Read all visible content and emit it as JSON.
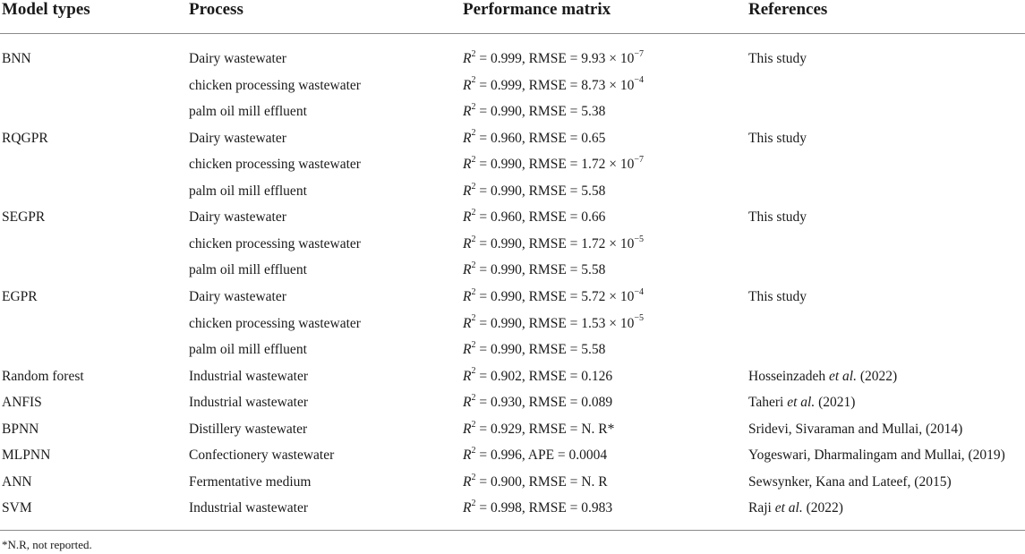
{
  "table": {
    "headers": [
      "Model types",
      "Process",
      "Performance matrix",
      "References"
    ],
    "rows": [
      {
        "model": "BNN",
        "process": "Dairy wastewater",
        "r2": "0.999",
        "metric": "RMSE = 9.93 × 10",
        "exp": "−7",
        "reference_pre": "This study",
        "reference_italic": "",
        "reference_post": ""
      },
      {
        "model": "",
        "process": "chicken processing wastewater",
        "r2": "0.999",
        "metric": "RMSE = 8.73 × 10",
        "exp": "−4",
        "reference_pre": "",
        "reference_italic": "",
        "reference_post": ""
      },
      {
        "model": "",
        "process": "palm oil mill effluent",
        "r2": "0.990",
        "metric": "RMSE = 5.38",
        "exp": "",
        "reference_pre": "",
        "reference_italic": "",
        "reference_post": ""
      },
      {
        "model": "RQGPR",
        "process": "Dairy wastewater",
        "r2": "0.960",
        "metric": "RMSE = 0.65",
        "exp": "",
        "reference_pre": "This study",
        "reference_italic": "",
        "reference_post": ""
      },
      {
        "model": "",
        "process": "chicken processing wastewater",
        "r2": "0.990",
        "metric": "RMSE = 1.72 × 10",
        "exp": "−7",
        "reference_pre": "",
        "reference_italic": "",
        "reference_post": ""
      },
      {
        "model": "",
        "process": "palm oil mill effluent",
        "r2": "0.990",
        "metric": "RMSE = 5.58",
        "exp": "",
        "reference_pre": "",
        "reference_italic": "",
        "reference_post": ""
      },
      {
        "model": "SEGPR",
        "process": "Dairy wastewater",
        "r2": "0.960",
        "metric": "RMSE = 0.66",
        "exp": "",
        "reference_pre": "This study",
        "reference_italic": "",
        "reference_post": ""
      },
      {
        "model": "",
        "process": "chicken processing wastewater",
        "r2": "0.990",
        "metric": "RMSE = 1.72 × 10",
        "exp": "−5",
        "reference_pre": "",
        "reference_italic": "",
        "reference_post": ""
      },
      {
        "model": "",
        "process": "palm oil mill effluent",
        "r2": "0.990",
        "metric": "RMSE = 5.58",
        "exp": "",
        "reference_pre": "",
        "reference_italic": "",
        "reference_post": ""
      },
      {
        "model": "EGPR",
        "process": "Dairy wastewater",
        "r2": "0.990",
        "metric": "RMSE = 5.72 × 10",
        "exp": "−4",
        "reference_pre": "This study",
        "reference_italic": "",
        "reference_post": ""
      },
      {
        "model": "",
        "process": "chicken processing wastewater",
        "r2": "0.990",
        "metric": "RMSE = 1.53 × 10",
        "exp": "−5",
        "reference_pre": "",
        "reference_italic": "",
        "reference_post": ""
      },
      {
        "model": "",
        "process": "palm oil mill effluent",
        "r2": "0.990",
        "metric": "RMSE = 5.58",
        "exp": "",
        "reference_pre": "",
        "reference_italic": "",
        "reference_post": ""
      },
      {
        "model": "Random forest",
        "process": "Industrial wastewater",
        "r2": "0.902",
        "metric": "RMSE = 0.126",
        "exp": "",
        "reference_pre": "Hosseinzadeh ",
        "reference_italic": "et al.",
        "reference_post": " (2022)"
      },
      {
        "model": "ANFIS",
        "process": "Industrial wastewater",
        "r2": "0.930",
        "metric": "RMSE = 0.089",
        "exp": "",
        "reference_pre": "Taheri ",
        "reference_italic": "et al.",
        "reference_post": " (2021)"
      },
      {
        "model": "BPNN",
        "process": "Distillery wastewater",
        "r2": "0.929",
        "metric": "RMSE = N. R*",
        "exp": "",
        "reference_pre": "Sridevi, Sivaraman and Mullai, (2014)",
        "reference_italic": "",
        "reference_post": ""
      },
      {
        "model": "MLPNN",
        "process": "Confectionery wastewater",
        "r2": "0.996",
        "metric": "APE = 0.0004",
        "exp": "",
        "reference_pre": "Yogeswari, Dharmalingam and Mullai, (2019)",
        "reference_italic": "",
        "reference_post": ""
      },
      {
        "model": "ANN",
        "process": "Fermentative medium",
        "r2": "0.900",
        "metric": "RMSE = N. R",
        "exp": "",
        "reference_pre": "Sewsynker, Kana and Lateef, (2015)",
        "reference_italic": "",
        "reference_post": ""
      },
      {
        "model": "SVM",
        "process": "Industrial wastewater",
        "r2": "0.998",
        "metric": "RMSE = 0.983",
        "exp": "",
        "reference_pre": "Raji ",
        "reference_italic": "et al.",
        "reference_post": " (2022)"
      }
    ]
  },
  "footnote": "*N.R, not reported."
}
